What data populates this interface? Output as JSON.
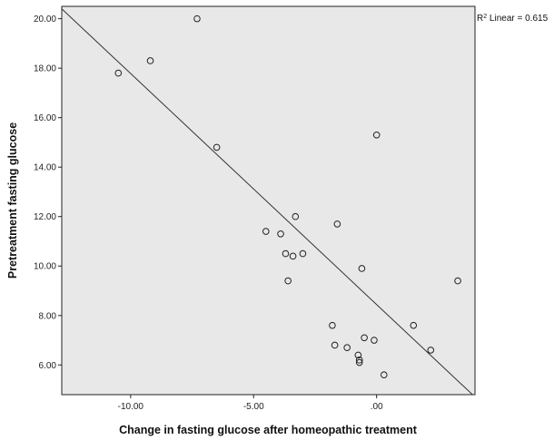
{
  "chart_data": {
    "type": "scatter",
    "title": "",
    "xlabel": "Change in fasting glucose after homeopathic treatment",
    "ylabel": "Pretreatment fasting glucose",
    "xlim": [
      -12.8,
      4.0
    ],
    "ylim": [
      4.8,
      20.5
    ],
    "x_ticks": [
      -10,
      -5,
      0
    ],
    "x_tick_labels": [
      "-10.00",
      "-5.00",
      ".00"
    ],
    "y_ticks": [
      6,
      8,
      10,
      12,
      14,
      16,
      18,
      20
    ],
    "y_tick_labels": [
      "6.00",
      "8.00",
      "10.00",
      "12.00",
      "14.00",
      "16.00",
      "18.00",
      "20.00"
    ],
    "grid": false,
    "background_color": "#e8e8e8",
    "series": [
      {
        "points": [
          {
            "x": -10.5,
            "y": 17.8
          },
          {
            "x": -9.2,
            "y": 18.3
          },
          {
            "x": -7.3,
            "y": 20.0
          },
          {
            "x": -6.5,
            "y": 14.8
          },
          {
            "x": -4.5,
            "y": 11.4
          },
          {
            "x": -3.9,
            "y": 11.3
          },
          {
            "x": -3.7,
            "y": 10.5
          },
          {
            "x": -3.4,
            "y": 10.4
          },
          {
            "x": -3.3,
            "y": 12.0
          },
          {
            "x": -3.0,
            "y": 10.5
          },
          {
            "x": -3.6,
            "y": 9.4
          },
          {
            "x": -1.6,
            "y": 11.7
          },
          {
            "x": -1.8,
            "y": 7.6
          },
          {
            "x": -1.7,
            "y": 6.8
          },
          {
            "x": -1.2,
            "y": 6.7
          },
          {
            "x": -0.5,
            "y": 7.1
          },
          {
            "x": -0.6,
            "y": 9.9
          },
          {
            "x": -0.1,
            "y": 7.0
          },
          {
            "x": 0.0,
            "y": 15.3
          },
          {
            "x": -0.75,
            "y": 6.4
          },
          {
            "x": -0.7,
            "y": 6.2
          },
          {
            "x": -0.7,
            "y": 6.1
          },
          {
            "x": 0.3,
            "y": 5.6
          },
          {
            "x": 1.5,
            "y": 7.6
          },
          {
            "x": 2.2,
            "y": 6.6
          },
          {
            "x": 3.3,
            "y": 9.4
          }
        ]
      }
    ],
    "fit_line": {
      "type": "linear",
      "start": {
        "x": -12.8,
        "y": 20.4
      },
      "end": {
        "x": 3.9,
        "y": 4.8
      },
      "label": "R² Linear = 0.615",
      "label_position": "top-right"
    }
  }
}
